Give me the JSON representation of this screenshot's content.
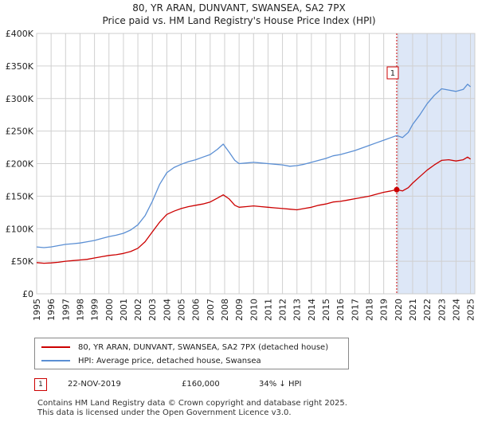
{
  "title_line1": "80, YR ARAN, DUNVANT, SWANSEA, SA2 7PX",
  "title_line2": "Price paid vs. HM Land Registry's House Price Index (HPI)",
  "chart_data": {
    "type": "line",
    "title": "80, YR ARAN, DUNVANT, SWANSEA, SA2 7PX — Price paid vs. HM Land Registry's House Price Index (HPI)",
    "xlabel": "",
    "ylabel": "",
    "xlim": [
      1995.0,
      2025.3
    ],
    "ylim": [
      0,
      400000
    ],
    "grid": true,
    "legend_position": "below",
    "x_ticks": [
      "1995",
      "1996",
      "1997",
      "1998",
      "1999",
      "2000",
      "2001",
      "2002",
      "2003",
      "2004",
      "2005",
      "2006",
      "2007",
      "2008",
      "2009",
      "2010",
      "2011",
      "2012",
      "2013",
      "2014",
      "2015",
      "2016",
      "2017",
      "2018",
      "2019",
      "2020",
      "2021",
      "2022",
      "2023",
      "2024",
      "2025"
    ],
    "y_ticks": [
      {
        "value": 0,
        "label": "£0"
      },
      {
        "value": 50000,
        "label": "£50K"
      },
      {
        "value": 100000,
        "label": "£100K"
      },
      {
        "value": 150000,
        "label": "£150K"
      },
      {
        "value": 200000,
        "label": "£200K"
      },
      {
        "value": 250000,
        "label": "£250K"
      },
      {
        "value": 300000,
        "label": "£300K"
      },
      {
        "value": 350000,
        "label": "£350K"
      },
      {
        "value": 400000,
        "label": "£400K"
      }
    ],
    "series": [
      {
        "name": "80, YR ARAN, DUNVANT, SWANSEA, SA2 7PX (detached house)",
        "color": "#cc0000",
        "x": [
          1995.0,
          1995.5,
          1996.0,
          1996.5,
          1997.0,
          1997.5,
          1998.0,
          1998.5,
          1999.0,
          1999.5,
          2000.0,
          2000.5,
          2001.0,
          2001.5,
          2002.0,
          2002.5,
          2003.0,
          2003.5,
          2004.0,
          2004.5,
          2005.0,
          2005.5,
          2006.0,
          2006.5,
          2007.0,
          2007.5,
          2007.9,
          2008.3,
          2008.7,
          2009.0,
          2009.5,
          2010.0,
          2010.5,
          2011.0,
          2011.5,
          2012.0,
          2012.5,
          2013.0,
          2013.5,
          2014.0,
          2014.5,
          2015.0,
          2015.5,
          2016.0,
          2016.5,
          2017.0,
          2017.5,
          2018.0,
          2018.5,
          2019.0,
          2019.5,
          2019.9,
          2020.3,
          2020.7,
          2021.0,
          2021.5,
          2022.0,
          2022.5,
          2023.0,
          2023.5,
          2024.0,
          2024.5,
          2024.8,
          2025.0
        ],
        "y": [
          48000,
          47000,
          47500,
          48500,
          50000,
          51000,
          52000,
          53000,
          55000,
          57000,
          59000,
          60000,
          62000,
          65000,
          70000,
          80000,
          95000,
          110000,
          122000,
          127000,
          131000,
          134000,
          136000,
          138000,
          141000,
          147000,
          152000,
          146000,
          136000,
          133000,
          134000,
          135000,
          134000,
          133000,
          132000,
          131000,
          130000,
          129000,
          131000,
          133000,
          136000,
          138000,
          141000,
          142000,
          144000,
          146000,
          148000,
          150000,
          153000,
          156000,
          158000,
          160000,
          158000,
          163000,
          170000,
          180000,
          190000,
          198000,
          205000,
          206000,
          204000,
          206000,
          210000,
          207000
        ]
      },
      {
        "name": "HPI: Average price, detached house, Swansea",
        "color": "#5b8fd4",
        "x": [
          1995.0,
          1995.5,
          1996.0,
          1996.5,
          1997.0,
          1997.5,
          1998.0,
          1998.5,
          1999.0,
          1999.5,
          2000.0,
          2000.5,
          2001.0,
          2001.5,
          2002.0,
          2002.5,
          2003.0,
          2003.5,
          2004.0,
          2004.5,
          2005.0,
          2005.5,
          2006.0,
          2006.5,
          2007.0,
          2007.5,
          2007.9,
          2008.3,
          2008.7,
          2009.0,
          2009.5,
          2010.0,
          2010.5,
          2011.0,
          2011.5,
          2012.0,
          2012.5,
          2013.0,
          2013.5,
          2014.0,
          2014.5,
          2015.0,
          2015.5,
          2016.0,
          2016.5,
          2017.0,
          2017.5,
          2018.0,
          2018.5,
          2019.0,
          2019.5,
          2019.9,
          2020.3,
          2020.7,
          2021.0,
          2021.5,
          2022.0,
          2022.5,
          2023.0,
          2023.5,
          2024.0,
          2024.5,
          2024.8,
          2025.0
        ],
        "y": [
          72000,
          71000,
          72000,
          74000,
          76000,
          77000,
          78000,
          80000,
          82000,
          85000,
          88000,
          90000,
          93000,
          98000,
          106000,
          120000,
          142000,
          168000,
          186000,
          194000,
          199000,
          203000,
          206000,
          210000,
          214000,
          222000,
          230000,
          218000,
          205000,
          200000,
          201000,
          202000,
          201000,
          200000,
          199000,
          198000,
          196000,
          197000,
          199000,
          202000,
          205000,
          208000,
          212000,
          214000,
          217000,
          220000,
          224000,
          228000,
          232000,
          236000,
          240000,
          243000,
          240000,
          248000,
          260000,
          275000,
          292000,
          305000,
          315000,
          313000,
          311000,
          314000,
          322000,
          318000
        ]
      }
    ],
    "annotations": [
      {
        "label": "1",
        "x": 2019.9,
        "y": 160000,
        "type": "sale-marker"
      }
    ],
    "shaded_region": {
      "x_start": 2019.9,
      "x_end": 2025.3,
      "color": "#dde7f7"
    }
  },
  "legend": {
    "entries": [
      {
        "label": "80, YR ARAN, DUNVANT, SWANSEA, SA2 7PX (detached house)",
        "color": "#cc0000"
      },
      {
        "label": "HPI: Average price, detached house, Swansea",
        "color": "#5b8fd4"
      }
    ]
  },
  "sale": {
    "number": "1",
    "date": "22-NOV-2019",
    "price": "£160,000",
    "delta": "34% ↓ HPI"
  },
  "footer": {
    "line1": "Contains HM Land Registry data © Crown copyright and database right 2025.",
    "line2": "This data is licensed under the Open Government Licence v3.0."
  }
}
